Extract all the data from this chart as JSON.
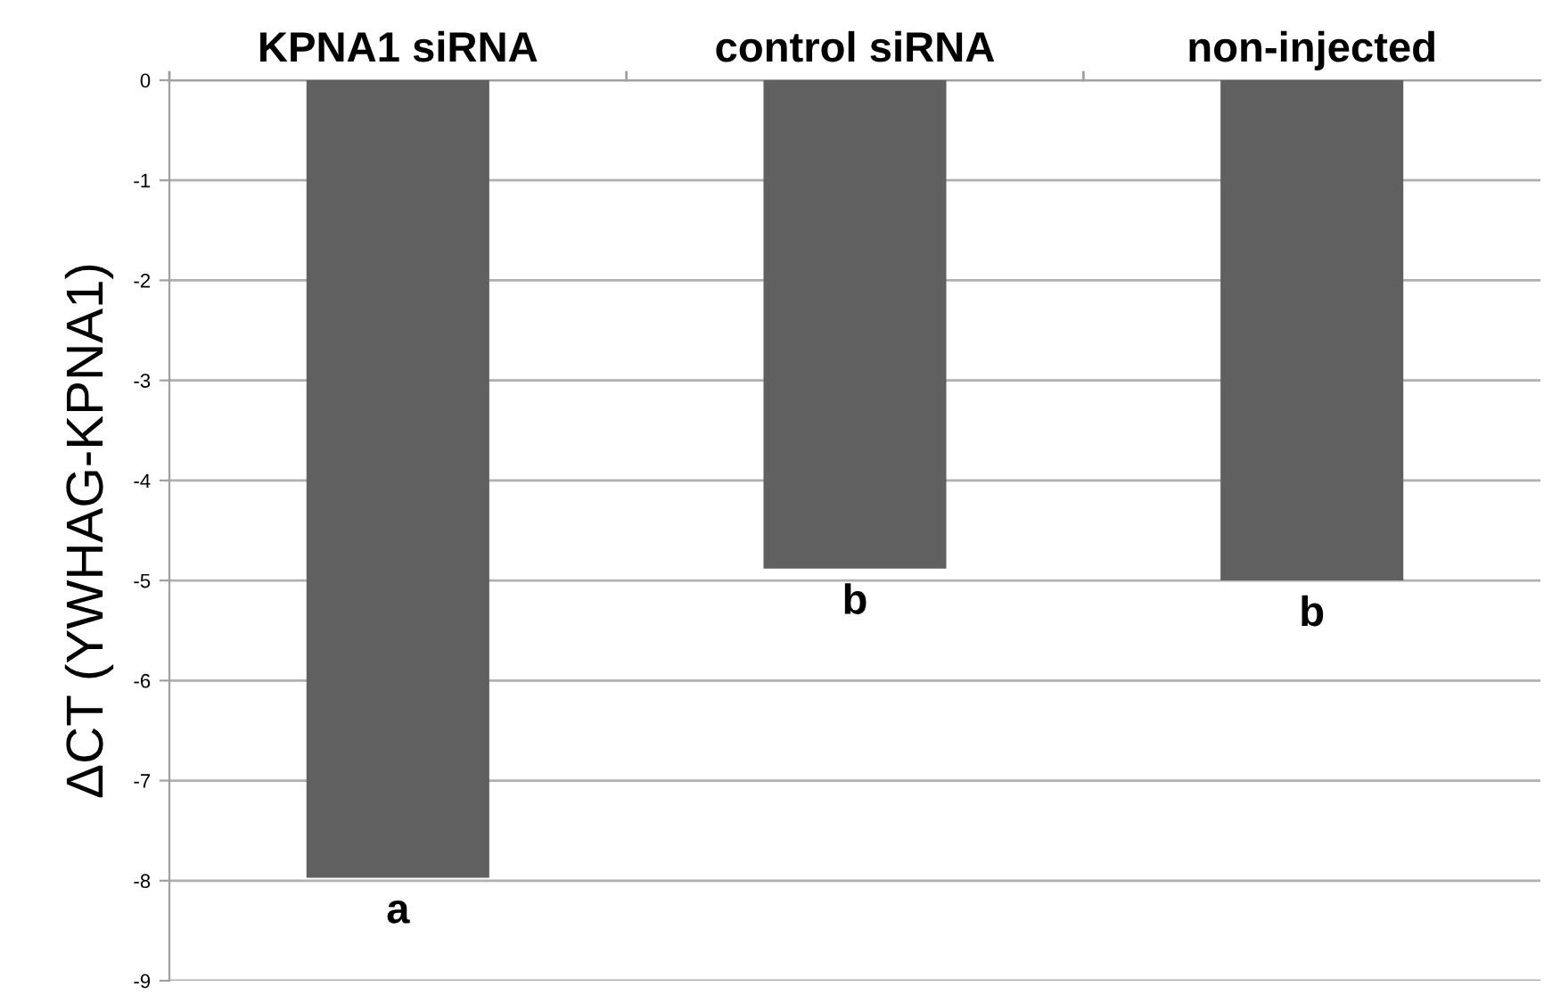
{
  "chart_data": {
    "type": "bar",
    "ylabel": "ΔCT (YWHAG-KPNA1)",
    "categories": [
      "KPNA1 siRNA",
      "control siRNA",
      "non-injected"
    ],
    "values": [
      -7.97,
      -4.88,
      -5.0
    ],
    "color": "#606060",
    "ylim": [
      -9,
      0
    ],
    "yticks": [
      -9,
      -8,
      -7,
      -6,
      -5,
      -4,
      -3,
      -2,
      -1,
      0
    ],
    "grid": "y",
    "annotations": [
      {
        "text": "a",
        "x": "KPNA1 siRNA",
        "y": -7.97
      },
      {
        "text": "b",
        "x": "control siRNA",
        "y": -4.88
      },
      {
        "text": "b",
        "x": "non-injected",
        "y": -5.0
      }
    ]
  }
}
